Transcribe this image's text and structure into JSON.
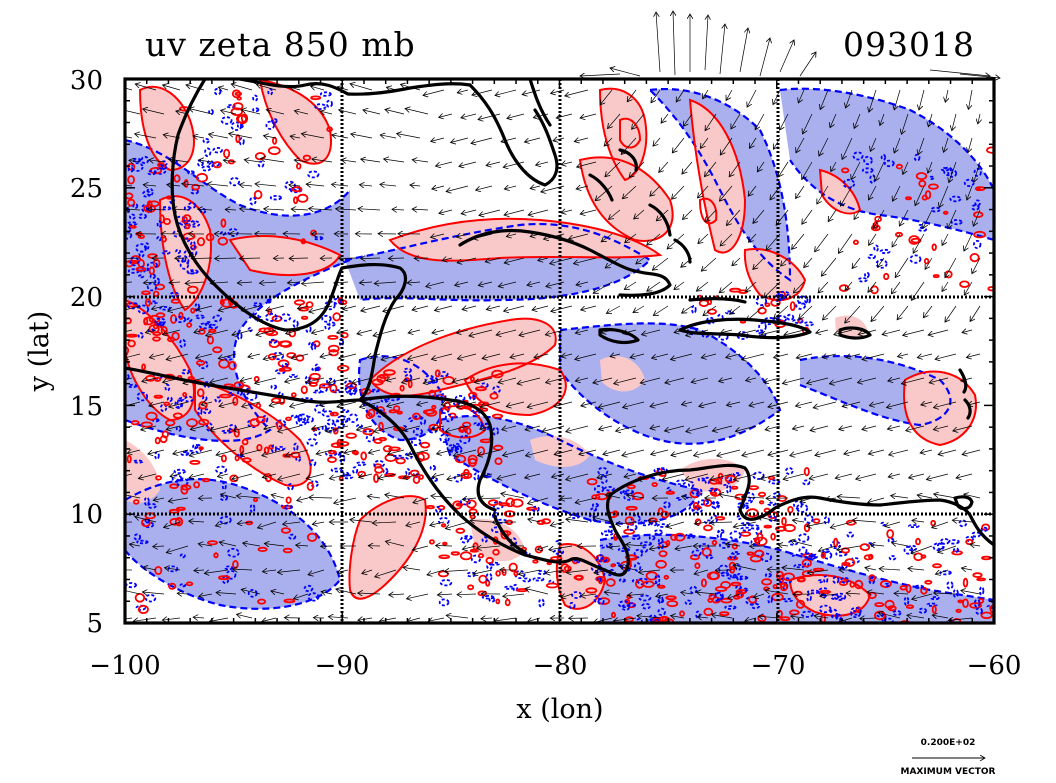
{
  "header": {
    "title": "uv zeta 850 mb",
    "timestamp": "093018"
  },
  "axes": {
    "xlabel": "x (lon)",
    "ylabel": "y (lat)",
    "xlim": [
      -100,
      -60
    ],
    "ylim": [
      5,
      30
    ],
    "xticks": [
      "−100",
      "−90",
      "−80",
      "−70",
      "−60"
    ],
    "yticks": [
      "5",
      "10",
      "15",
      "20",
      "25",
      "30"
    ],
    "grid": true
  },
  "legend": {
    "vector_value": "0.200E+02",
    "vector_label": "MAXIMUM VECTOR"
  },
  "colors": {
    "positive_contour": "#ff0000",
    "positive_fill": "#f9c8c8",
    "negative_contour": "#0000ff",
    "negative_fill": "#aab0ee",
    "coastline": "#000000",
    "grid": "#000000"
  },
  "layers": {
    "fields": "relative vorticity (zeta) filled contours, positive red / negative blue dashed",
    "vectors": "850 mb wind vectors (uv)",
    "coastline": "land outlines"
  }
}
